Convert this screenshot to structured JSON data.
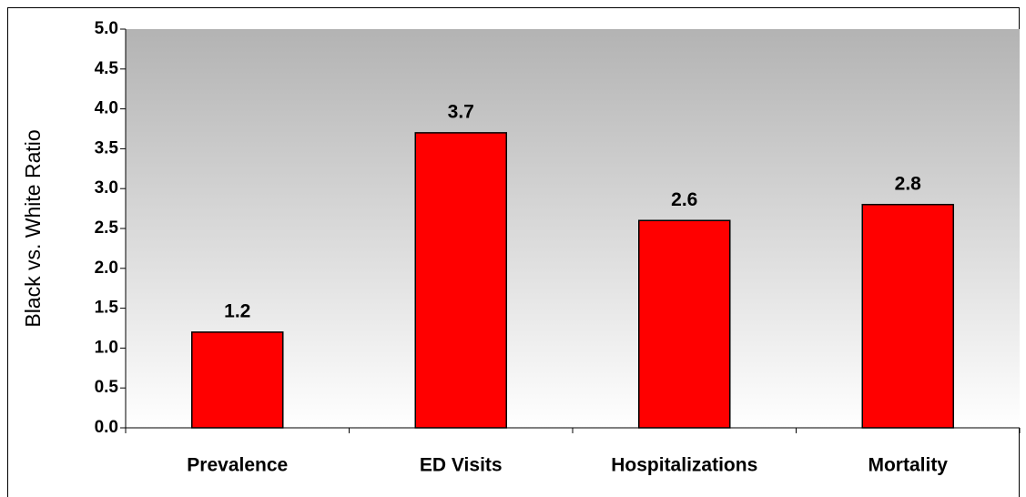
{
  "chart_data": {
    "type": "bar",
    "y_label": "Black vs. White Ratio",
    "categories": [
      "Prevalence",
      "ED Visits",
      "Hospitalizations",
      "Mortality"
    ],
    "values": [
      1.2,
      3.7,
      2.6,
      2.8
    ],
    "color": "#ff0000",
    "ylim": [
      0,
      5
    ],
    "yticks": [
      {
        "value": 0,
        "label": "0.0"
      },
      {
        "value": 0.5,
        "label": "0.5"
      },
      {
        "value": 1,
        "label": "1.0"
      },
      {
        "value": 1.5,
        "label": "1.5"
      },
      {
        "value": 2,
        "label": "2.0"
      },
      {
        "value": 2.5,
        "label": "2.5"
      },
      {
        "value": 3,
        "label": "3.0"
      },
      {
        "value": 3.5,
        "label": "3.5"
      },
      {
        "value": 4,
        "label": "4.0"
      },
      {
        "value": 4.5,
        "label": "4.5"
      },
      {
        "value": 5,
        "label": "5.0"
      }
    ]
  }
}
